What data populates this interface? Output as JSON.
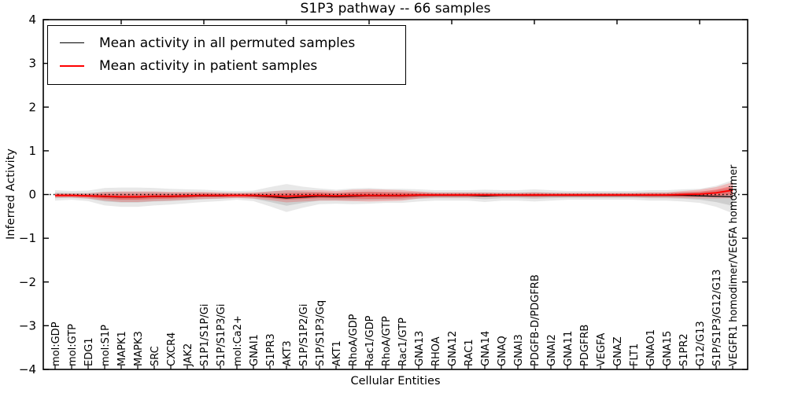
{
  "chart_data": {
    "type": "line",
    "title": "S1P3 pathway -- 66 samples",
    "xlabel": "Cellular Entities",
    "ylabel": "Inferred Activity",
    "ylim": [
      -4,
      4
    ],
    "yticks": [
      4,
      3,
      2,
      1,
      0,
      -1,
      -2,
      -3,
      -4
    ],
    "grid": false,
    "zero_reference_line": 0,
    "legend_position": "upper left",
    "categories": [
      "mol:GDP",
      "mol:GTP",
      "EDG1",
      "mol:S1P",
      "MAPK1",
      "MAPK3",
      "SRC",
      "CXCR4",
      "JAK2",
      "S1P1/S1P/Gi",
      "S1P/S1P3/Gi",
      "mol:Ca2+",
      "GNAI1",
      "S1PR3",
      "AKT3",
      "S1P/S1P2/Gi",
      "S1P/S1P3/Gq",
      "AKT1",
      "RhoA/GDP",
      "Rac1/GDP",
      "RhoA/GTP",
      "Rac1/GTP",
      "GNA13",
      "RHOA",
      "GNA12",
      "RAC1",
      "GNA14",
      "GNAQ",
      "GNAI3",
      "PDGFB-D/PDGFRB",
      "GNAI2",
      "GNA11",
      "PDGFRB",
      "VEGFA",
      "GNAZ",
      "FLT1",
      "GNAO1",
      "GNA15",
      "S1PR2",
      "G12/G13",
      "S1P/S1P3/G12/G13",
      "VEGFR1 homodimer/VEGFA homodimer"
    ],
    "series": [
      {
        "name": "Mean activity in all permuted samples",
        "color": "#000000",
        "band_color_outer": "rgba(0,0,0,0.09)",
        "band_color_inner": "rgba(0,0,0,0.11)",
        "values": [
          -0.02,
          -0.02,
          -0.03,
          -0.05,
          -0.06,
          -0.06,
          -0.05,
          -0.05,
          -0.04,
          -0.03,
          -0.03,
          -0.02,
          -0.03,
          -0.05,
          -0.08,
          -0.06,
          -0.04,
          -0.05,
          -0.04,
          -0.03,
          -0.03,
          -0.03,
          -0.02,
          -0.02,
          -0.02,
          -0.02,
          -0.03,
          -0.02,
          -0.02,
          -0.02,
          -0.02,
          -0.02,
          -0.02,
          -0.02,
          -0.02,
          -0.02,
          -0.02,
          -0.02,
          -0.02,
          -0.03,
          -0.04,
          -0.05
        ],
        "band_halfwidth": [
          0.12,
          0.1,
          0.12,
          0.2,
          0.22,
          0.22,
          0.2,
          0.18,
          0.16,
          0.14,
          0.12,
          0.1,
          0.12,
          0.22,
          0.32,
          0.24,
          0.18,
          0.16,
          0.18,
          0.18,
          0.16,
          0.16,
          0.14,
          0.12,
          0.12,
          0.12,
          0.14,
          0.12,
          0.12,
          0.14,
          0.12,
          0.1,
          0.1,
          0.1,
          0.1,
          0.1,
          0.12,
          0.12,
          0.14,
          0.16,
          0.24,
          0.38
        ]
      },
      {
        "name": "Mean activity in patient samples",
        "color": "#ff0000",
        "band_color_outer": "rgba(255,0,0,0.20)",
        "band_color_inner": "rgba(255,0,0,0.30)",
        "values": [
          -0.02,
          -0.02,
          -0.03,
          -0.04,
          -0.05,
          -0.05,
          -0.04,
          -0.04,
          -0.03,
          -0.02,
          -0.02,
          -0.02,
          -0.02,
          -0.03,
          -0.04,
          -0.03,
          -0.02,
          -0.03,
          -0.02,
          -0.02,
          -0.02,
          -0.02,
          -0.01,
          -0.01,
          -0.01,
          -0.01,
          -0.01,
          -0.01,
          -0.01,
          -0.01,
          -0.01,
          -0.01,
          -0.01,
          -0.01,
          -0.01,
          -0.01,
          -0.01,
          -0.01,
          0.0,
          0.01,
          0.04,
          0.1
        ],
        "band_halfwidth": [
          0.05,
          0.05,
          0.06,
          0.1,
          0.12,
          0.12,
          0.11,
          0.1,
          0.09,
          0.08,
          0.07,
          0.06,
          0.07,
          0.1,
          0.14,
          0.13,
          0.12,
          0.11,
          0.13,
          0.14,
          0.13,
          0.12,
          0.08,
          0.06,
          0.06,
          0.06,
          0.06,
          0.05,
          0.05,
          0.06,
          0.05,
          0.05,
          0.05,
          0.05,
          0.05,
          0.05,
          0.06,
          0.06,
          0.08,
          0.1,
          0.13,
          0.18
        ]
      }
    ]
  }
}
